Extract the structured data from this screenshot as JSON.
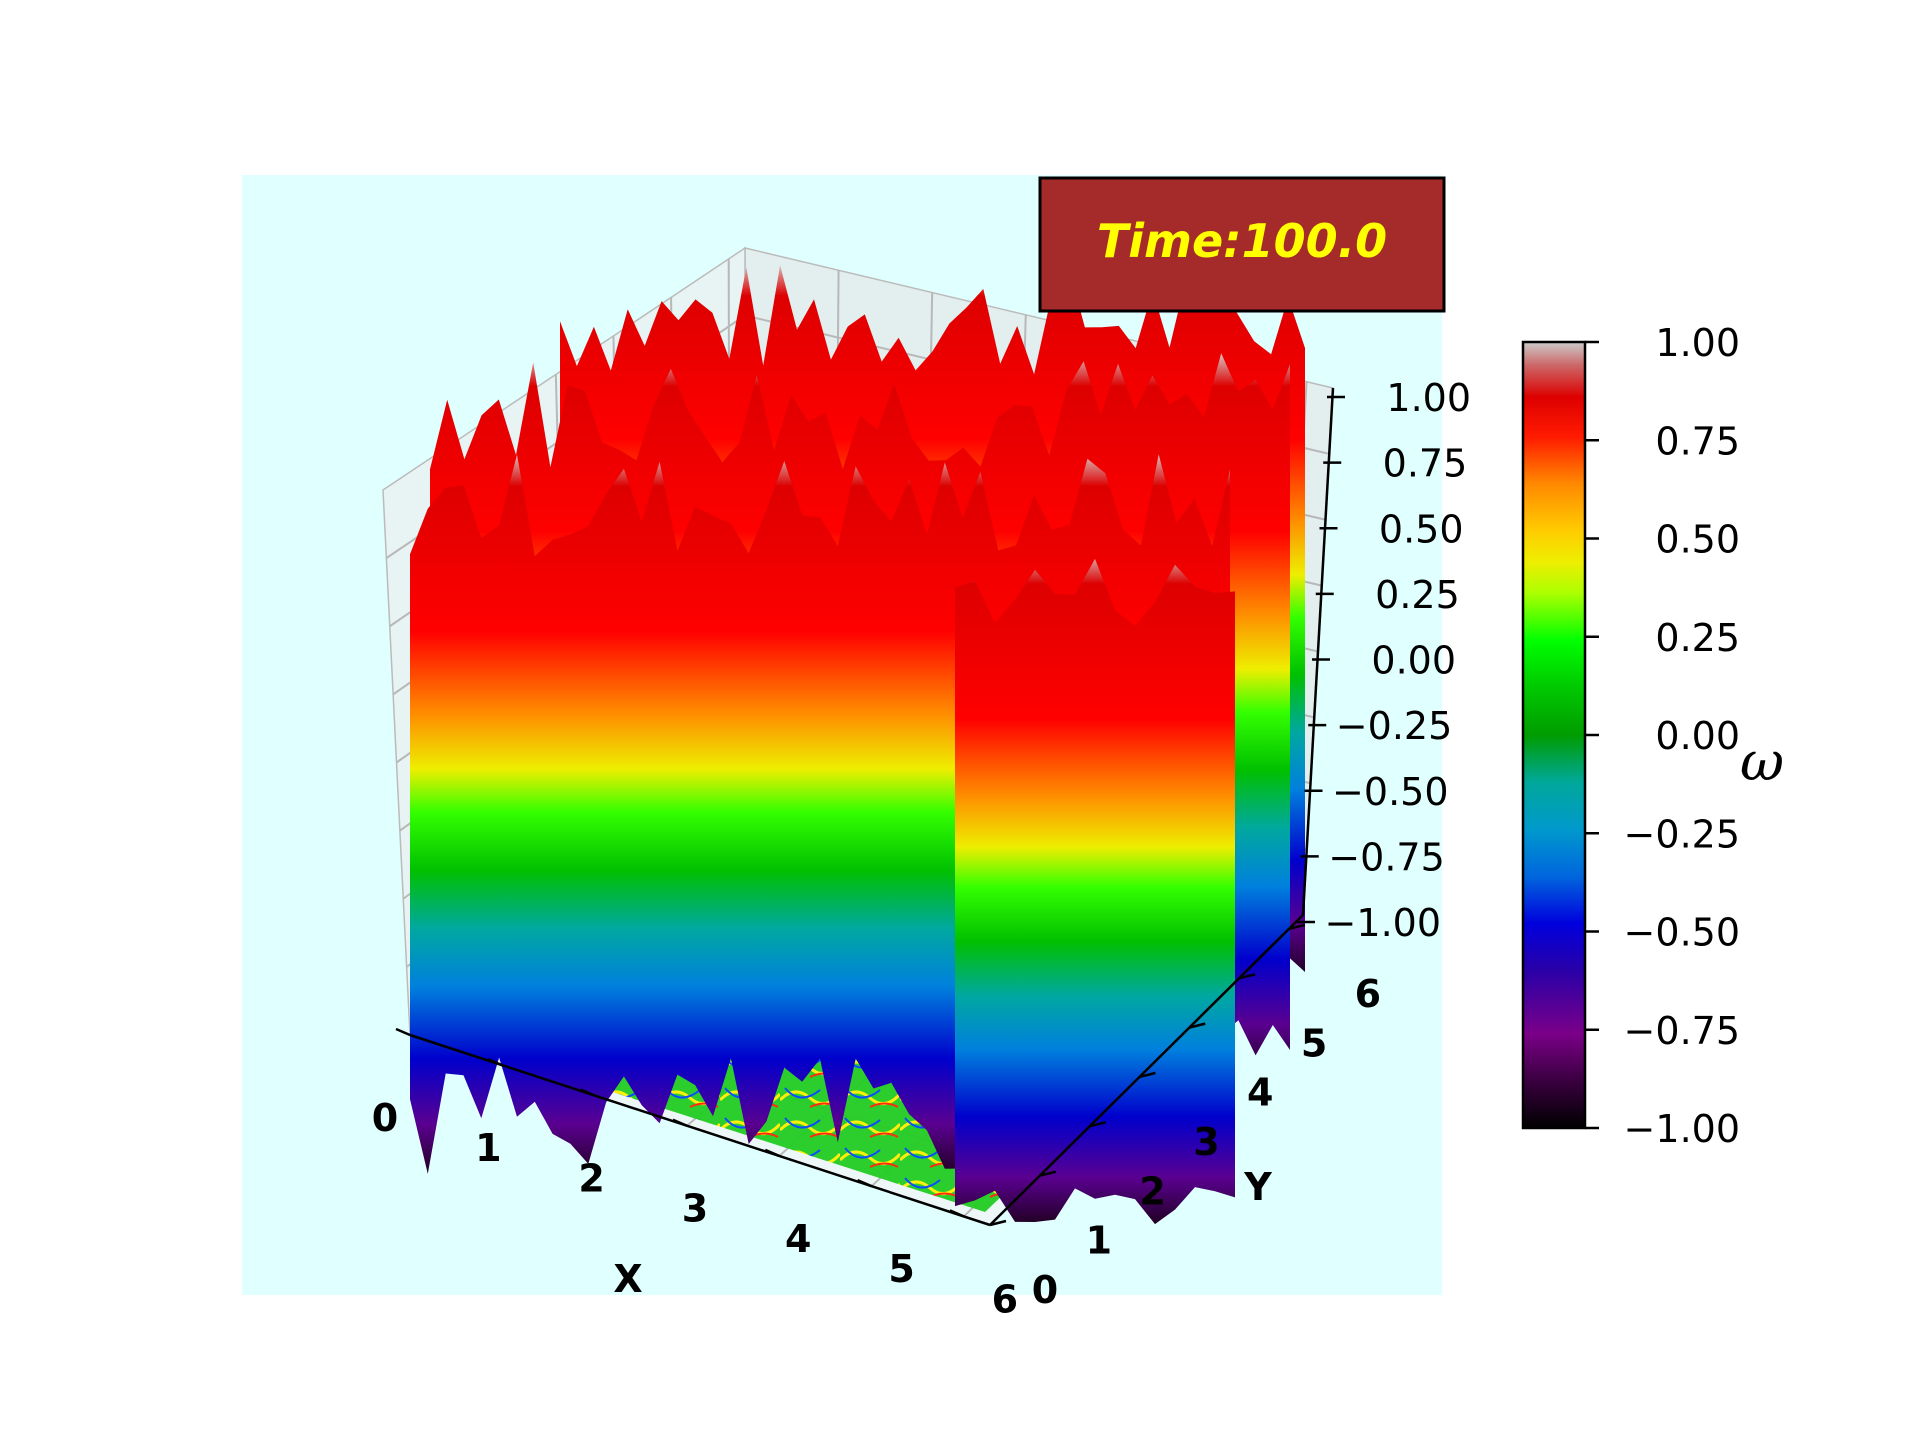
{
  "chart_data": {
    "type": "surface3d",
    "title": "",
    "time_label": "Time:100.0",
    "xlabel": "X",
    "ylabel": "Y",
    "zlabel": "",
    "colorbar_label": "ω",
    "x_ticks": [
      "0",
      "1",
      "2",
      "3",
      "4",
      "5",
      "6"
    ],
    "y_ticks": [
      "0",
      "1",
      "2",
      "3",
      "4",
      "5",
      "6"
    ],
    "z_ticks": [
      "−1.00",
      "−0.75",
      "−0.50",
      "−0.25",
      "0.00",
      "0.25",
      "0.50",
      "0.75",
      "1.00"
    ],
    "colorbar_ticks": [
      "−1.00",
      "−0.75",
      "−0.50",
      "−0.25",
      "0.00",
      "0.25",
      "0.50",
      "0.75",
      "1.00"
    ],
    "xlim": [
      0,
      6.283
    ],
    "ylim": [
      0,
      6.283
    ],
    "zlim": [
      -1.0,
      1.0
    ],
    "colormap": "nipy_spectral",
    "grid": true,
    "colors": {
      "axes_background": "#e0ffff",
      "time_box_fill": "#a52a2a",
      "time_text": "#ffff00"
    }
  }
}
